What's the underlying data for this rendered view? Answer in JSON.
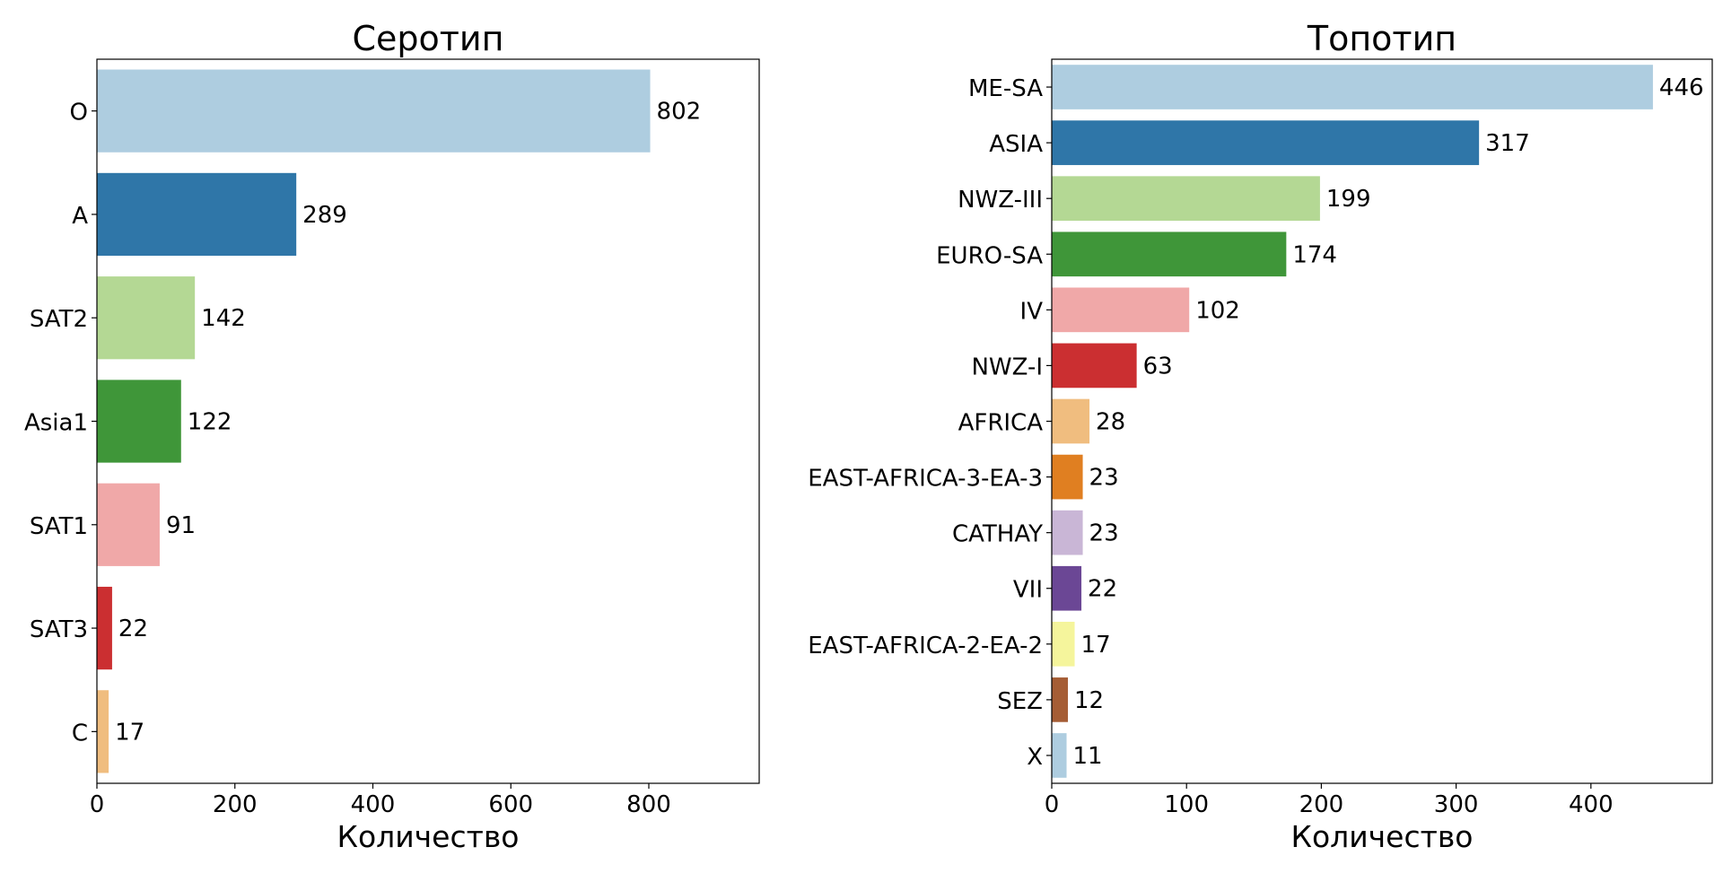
{
  "chart_data": [
    {
      "type": "bar",
      "orientation": "horizontal",
      "title": "Серотип",
      "xlabel": "Количество",
      "ylabel": "",
      "xlim": [
        0,
        960
      ],
      "xticks": [
        "0",
        "200",
        "400",
        "600",
        "800"
      ],
      "categories": [
        "O",
        "A",
        "SAT2",
        "Asia1",
        "SAT1",
        "SAT3",
        "C"
      ],
      "values": [
        802,
        289,
        142,
        122,
        91,
        22,
        17
      ],
      "colors": [
        "#aecde0",
        "#2f76a8",
        "#b4d894",
        "#3f9639",
        "#f0a8a8",
        "#cb2f31",
        "#f0bd7f"
      ],
      "grid": false
    },
    {
      "type": "bar",
      "orientation": "horizontal",
      "title": "Топотип",
      "xlabel": "Количество",
      "ylabel": "",
      "xlim": [
        0,
        490
      ],
      "xticks": [
        "0",
        "100",
        "200",
        "300",
        "400"
      ],
      "categories": [
        "ME-SA",
        "ASIA",
        "NWZ-III",
        "EURO-SA",
        "IV",
        "NWZ-I",
        "AFRICA",
        "EAST-AFRICA-3-EA-3",
        "CATHAY",
        "VII",
        "EAST-AFRICA-2-EA-2",
        "SEZ",
        "X"
      ],
      "values": [
        446,
        317,
        199,
        174,
        102,
        63,
        28,
        23,
        23,
        22,
        17,
        12,
        11
      ],
      "colors": [
        "#aecde0",
        "#2f76a8",
        "#b4d894",
        "#3f9639",
        "#f0a8a8",
        "#cb2f31",
        "#f0bd7f",
        "#e07f21",
        "#c9b6d6",
        "#6b4795",
        "#f5f59c",
        "#a55d35",
        "#aecde0"
      ],
      "grid": false
    }
  ]
}
